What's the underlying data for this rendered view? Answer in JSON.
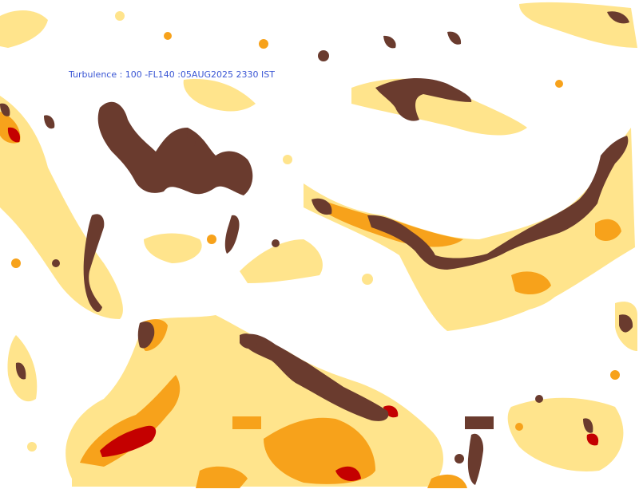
{
  "map": {
    "title": "Turbulence : 100 -FL140 :05AUG2025 2330 IST",
    "colors": {
      "light": "#FFE48C",
      "moderate": "#F7A21B",
      "severe": "#C40000",
      "extreme": "#6A3B2E",
      "background": "#FFFFFF",
      "title_text": "#3A56D4"
    }
  },
  "legend": {
    "swatches": [
      {
        "color": "#F7A21B"
      },
      {
        "color": "#6A3B2E"
      }
    ]
  }
}
